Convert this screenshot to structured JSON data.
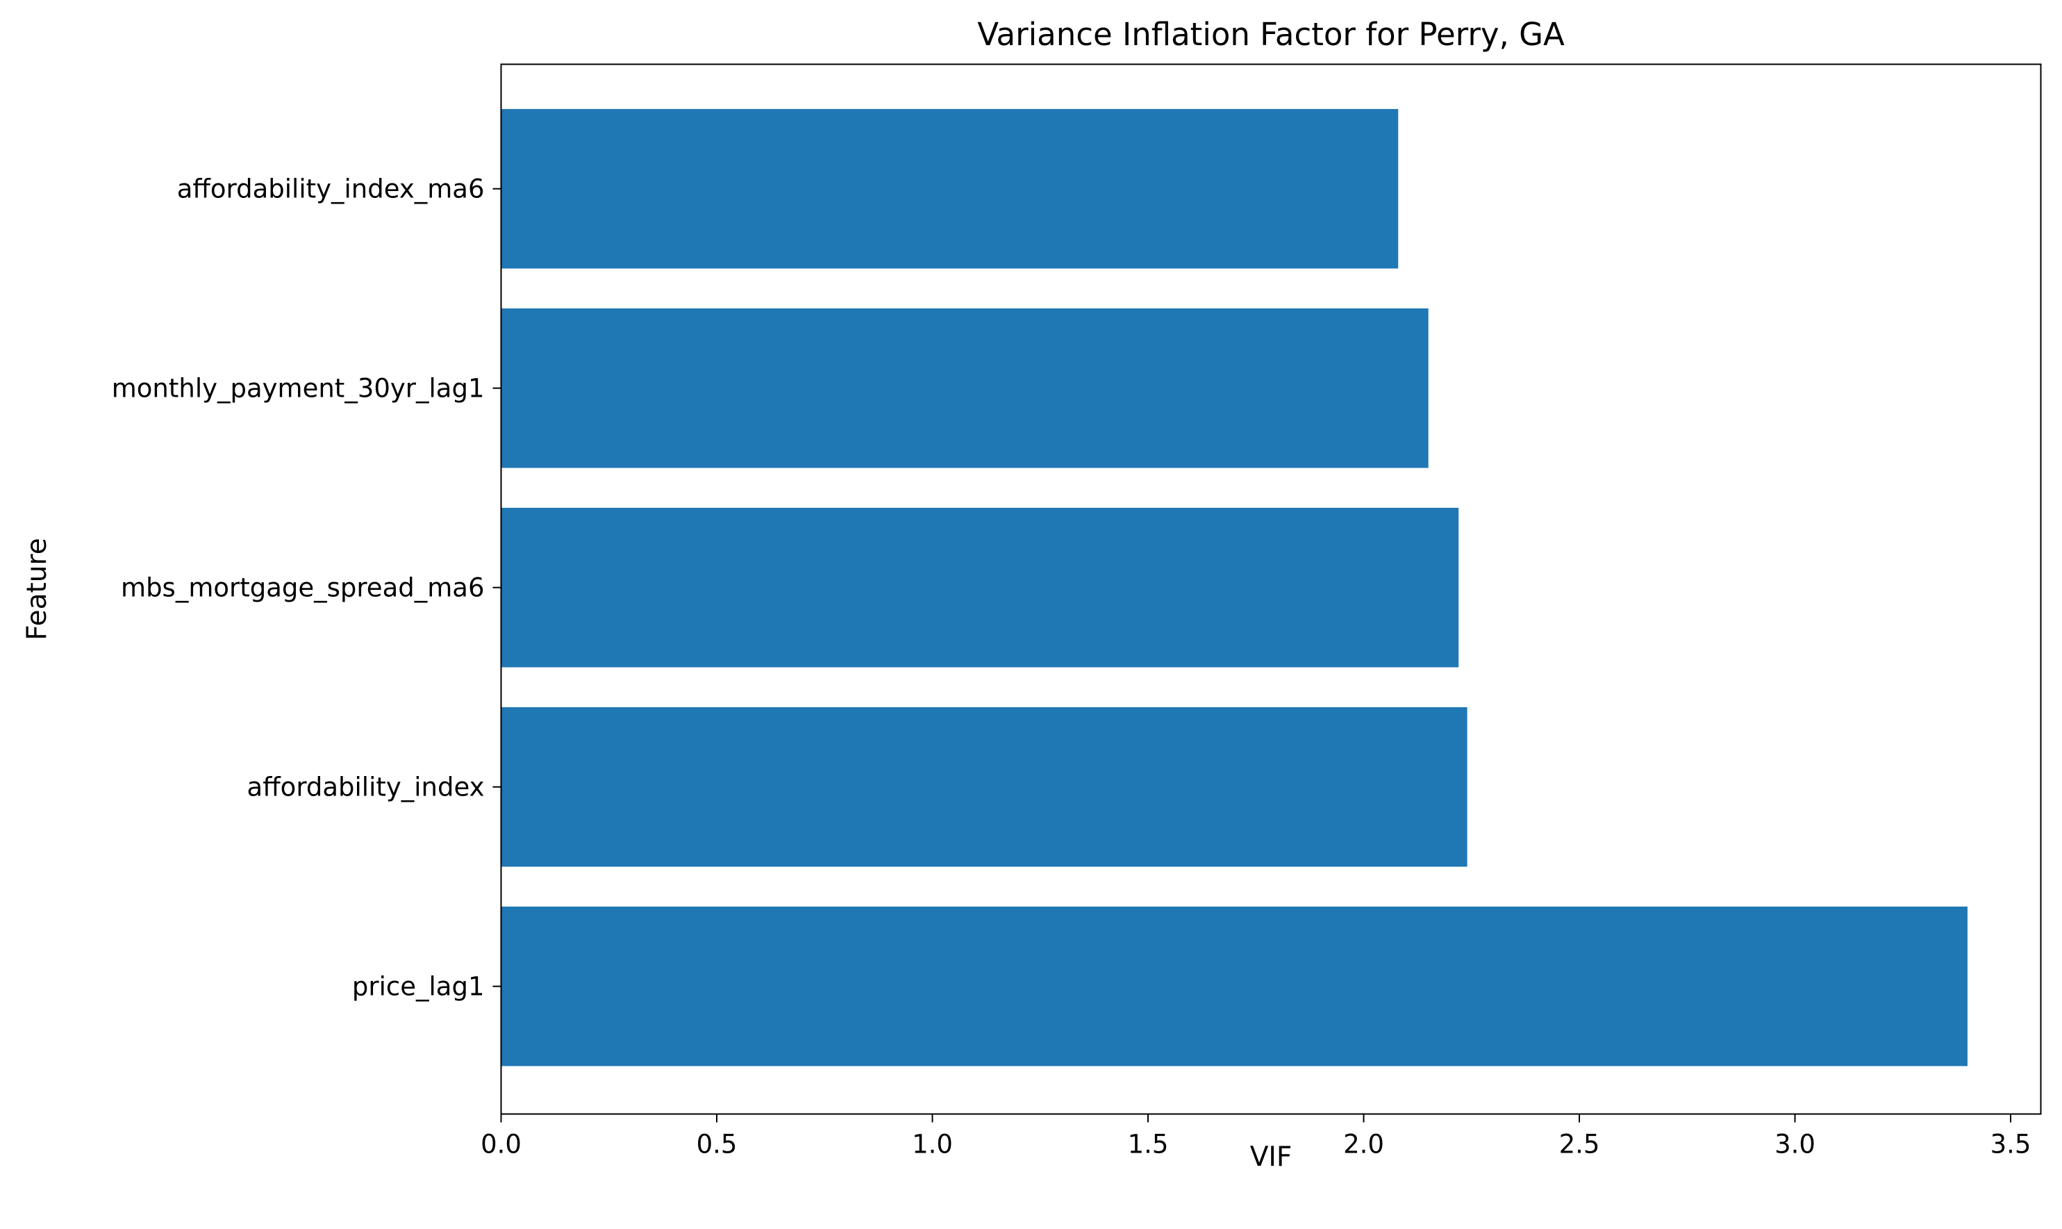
{
  "chart_data": {
    "type": "bar",
    "orientation": "horizontal",
    "title": "Variance Inflation Factor for Perry, GA",
    "xlabel": "VIF",
    "ylabel": "Feature",
    "categories": [
      "price_lag1",
      "affordability_index",
      "mbs_mortgage_spread_ma6",
      "monthly_payment_30yr_lag1",
      "affordability_index_ma6"
    ],
    "values": [
      3.4,
      2.24,
      2.22,
      2.15,
      2.08
    ],
    "xlim": [
      0,
      3.57
    ],
    "xticks": [
      0.0,
      0.5,
      1.0,
      1.5,
      2.0,
      2.5,
      3.0,
      3.5
    ],
    "xtick_labels": [
      "0.0",
      "0.5",
      "1.0",
      "1.5",
      "2.0",
      "2.5",
      "3.0",
      "3.5"
    ],
    "grid": false,
    "bar_color": "#1f77b4"
  }
}
